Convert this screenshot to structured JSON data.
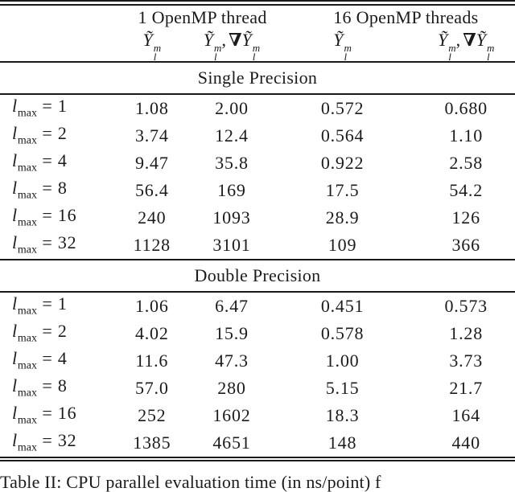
{
  "page": {
    "background": "#ffffff",
    "text_color": "#1b1b1b",
    "rule_color": "#1a1a1a"
  },
  "table": {
    "group_headers": [
      {
        "label": "1 OpenMP thread"
      },
      {
        "label": "16 OpenMP threads"
      }
    ],
    "math": {
      "y": "Ỹ",
      "sup": "m",
      "sub": "l",
      "comma": ",",
      "nabla": "∇"
    },
    "row_label": {
      "base": "l",
      "sub": "max",
      "eq": "="
    },
    "columns": [
      "lmax",
      "y_1thread",
      "y_grad_1thread",
      "y_16threads",
      "y_grad_16threads"
    ],
    "sections": [
      {
        "title": "Single Precision",
        "rows": [
          {
            "lmax": "1",
            "values": [
              "1.08",
              "2.00",
              "0.572",
              "0.680"
            ]
          },
          {
            "lmax": "2",
            "values": [
              "3.74",
              "12.4",
              "0.564",
              "1.10"
            ]
          },
          {
            "lmax": "4",
            "values": [
              "9.47",
              "35.8",
              "0.922",
              "2.58"
            ]
          },
          {
            "lmax": "8",
            "values": [
              "56.4",
              "169",
              "17.5",
              "54.2"
            ]
          },
          {
            "lmax": "16",
            "values": [
              "240",
              "1093",
              "28.9",
              "126"
            ]
          },
          {
            "lmax": "32",
            "values": [
              "1128",
              "3101",
              "109",
              "366"
            ]
          }
        ]
      },
      {
        "title": "Double Precision",
        "rows": [
          {
            "lmax": "1",
            "values": [
              "1.06",
              "6.47",
              "0.451",
              "0.573"
            ]
          },
          {
            "lmax": "2",
            "values": [
              "4.02",
              "15.9",
              "0.578",
              "1.28"
            ]
          },
          {
            "lmax": "4",
            "values": [
              "11.6",
              "47.3",
              "1.00",
              "3.73"
            ]
          },
          {
            "lmax": "8",
            "values": [
              "57.0",
              "280",
              "5.15",
              "21.7"
            ]
          },
          {
            "lmax": "16",
            "values": [
              "252",
              "1602",
              "18.3",
              "164"
            ]
          },
          {
            "lmax": "32",
            "values": [
              "1385",
              "4651",
              "148",
              "440"
            ]
          }
        ]
      }
    ]
  },
  "caption": {
    "text": "Table II: CPU parallel evaluation time (in ns/point) f"
  }
}
